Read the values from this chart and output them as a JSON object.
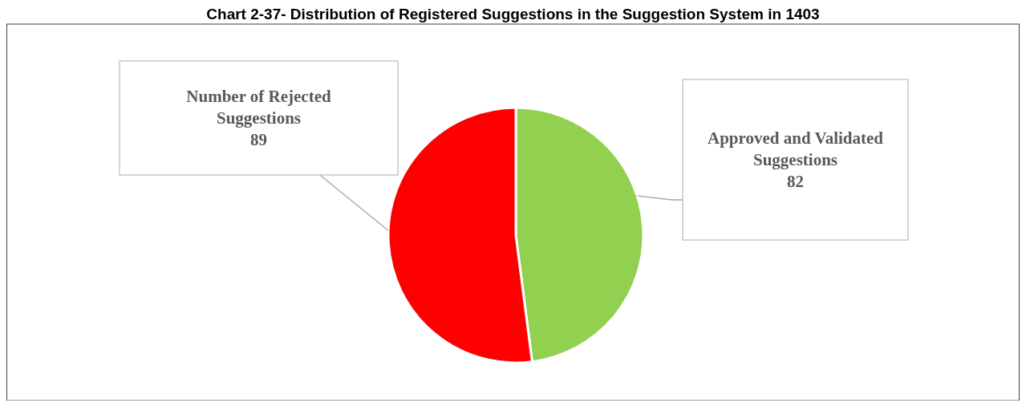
{
  "chart_data": {
    "type": "pie",
    "title": "Chart 2-37- Distribution of Registered Suggestions in the Suggestion System in 1403",
    "categories": [
      "Approved and Validated Suggestions",
      "Number of Rejected Suggestions"
    ],
    "values": [
      82,
      89
    ],
    "colors": [
      "#92d050",
      "#ff0000"
    ],
    "data_labels": true
  }
}
